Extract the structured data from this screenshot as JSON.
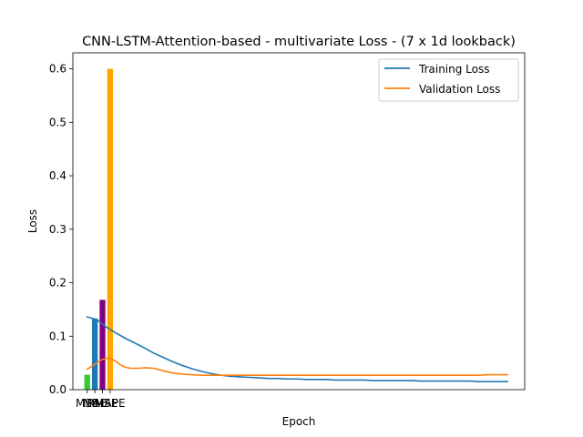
{
  "chart_data": {
    "type": "line",
    "title": "CNN-LSTM-Attention-based - multivariate Loss - (7 x 1d lookback)",
    "xlabel": "Epoch",
    "ylabel": "Loss",
    "x_range": [
      -1.5,
      45.8
    ],
    "ylim": [
      0,
      0.63
    ],
    "y_ticks": [
      0.0,
      0.1,
      0.2,
      0.3,
      0.4,
      0.5,
      0.6
    ],
    "y_tick_labels": [
      "0.0",
      "0.1",
      "0.2",
      "0.3",
      "0.4",
      "0.5",
      "0.6"
    ],
    "legend_position": "top-right",
    "bars": {
      "categories": [
        "MSE",
        "MAE",
        "RMSE",
        "MAPE"
      ],
      "x_positions": [
        0,
        0.8,
        1.6,
        2.4
      ],
      "values": [
        0.028,
        0.133,
        0.168,
        0.6
      ],
      "colors": [
        "#33cc33",
        "#1f77b4",
        "#800080",
        "#ffa500"
      ]
    },
    "series": [
      {
        "name": "Training Loss",
        "color": "#1f77b4",
        "x": [
          0,
          1,
          2,
          3,
          4,
          5,
          6,
          7,
          8,
          9,
          10,
          11,
          12,
          13,
          14,
          15,
          16,
          17,
          18,
          19,
          20,
          21,
          22,
          23,
          24,
          25,
          26,
          27,
          28,
          29,
          30,
          31,
          32,
          33,
          34,
          35,
          36,
          37,
          38,
          39,
          40,
          41,
          42,
          43,
          44
        ],
        "y": [
          0.136,
          0.131,
          0.117,
          0.106,
          0.096,
          0.087,
          0.078,
          0.068,
          0.06,
          0.052,
          0.045,
          0.039,
          0.034,
          0.03,
          0.027,
          0.025,
          0.024,
          0.023,
          0.022,
          0.021,
          0.021,
          0.02,
          0.02,
          0.019,
          0.019,
          0.019,
          0.018,
          0.018,
          0.018,
          0.018,
          0.017,
          0.017,
          0.017,
          0.017,
          0.017,
          0.016,
          0.016,
          0.016,
          0.016,
          0.016,
          0.016,
          0.015,
          0.015,
          0.015,
          0.015
        ]
      },
      {
        "name": "Validation Loss",
        "color": "#ff7f0e",
        "x": [
          0,
          0.5,
          1,
          1.5,
          2,
          2.5,
          3,
          3.5,
          4,
          4.5,
          5,
          5.5,
          6,
          7,
          8,
          9,
          10,
          11,
          12,
          13,
          14,
          15,
          16,
          17,
          18,
          19,
          20,
          21,
          22,
          23,
          24,
          25,
          26,
          27,
          28,
          29,
          30,
          31,
          32,
          33,
          34,
          35,
          36,
          37,
          38,
          39,
          40,
          41,
          42,
          43,
          44
        ],
        "y": [
          0.038,
          0.044,
          0.05,
          0.056,
          0.059,
          0.058,
          0.053,
          0.046,
          0.042,
          0.04,
          0.04,
          0.04,
          0.041,
          0.04,
          0.035,
          0.031,
          0.029,
          0.028,
          0.027,
          0.027,
          0.027,
          0.027,
          0.027,
          0.027,
          0.027,
          0.027,
          0.027,
          0.027,
          0.027,
          0.027,
          0.027,
          0.027,
          0.027,
          0.027,
          0.027,
          0.027,
          0.027,
          0.027,
          0.027,
          0.027,
          0.027,
          0.027,
          0.027,
          0.027,
          0.027,
          0.027,
          0.027,
          0.027,
          0.028,
          0.028,
          0.028
        ]
      }
    ]
  }
}
